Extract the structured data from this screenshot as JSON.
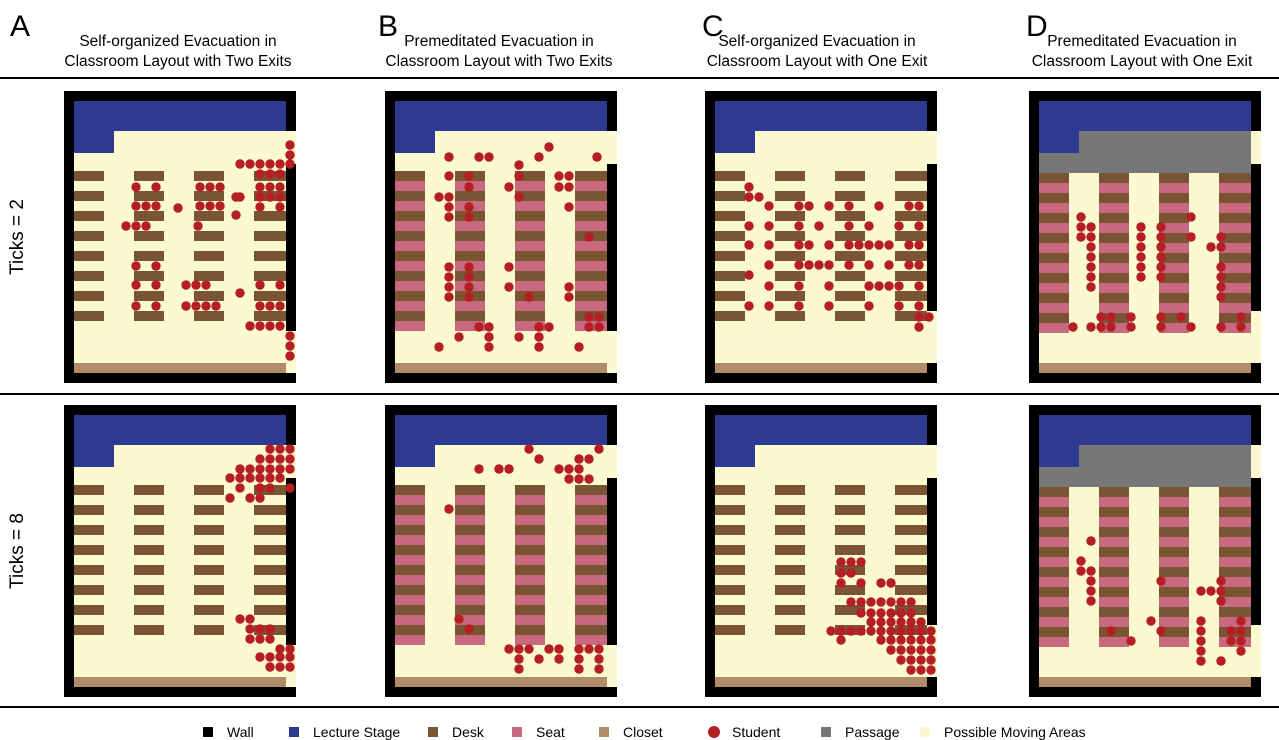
{
  "columns": [
    {
      "letter": "A",
      "title_line1": "Self-organized Evacuation in",
      "title_line2": "Classroom Layout with Two Exits"
    },
    {
      "letter": "B",
      "title_line1": "Premeditated Evacuation in",
      "title_line2": "Classroom Layout with Two Exits"
    },
    {
      "letter": "C",
      "title_line1": "Self-organized Evacuation in",
      "title_line2": "Classroom Layout with One Exit"
    },
    {
      "letter": "D",
      "title_line1": "Premeditated Evacuation in",
      "title_line2": "Classroom Layout with One Exit"
    }
  ],
  "rows": [
    {
      "label": "Ticks = 2"
    },
    {
      "label": "Ticks = 8"
    }
  ],
  "legend": [
    {
      "label": "Wall",
      "color": "#000000",
      "shape": "square"
    },
    {
      "label": "Lecture Stage",
      "color": "#2e3a8f",
      "shape": "square"
    },
    {
      "label": "Desk",
      "color": "#7a5533",
      "shape": "square"
    },
    {
      "label": "Seat",
      "color": "#c8697f",
      "shape": "square"
    },
    {
      "label": "Closet",
      "color": "#b08d68",
      "shape": "square"
    },
    {
      "label": "Student",
      "color": "#b51f24",
      "shape": "circle"
    },
    {
      "label": "Passage",
      "color": "#777777",
      "shape": "square"
    },
    {
      "label": "Possible Moving Areas",
      "color": "#fbf9cf",
      "shape": "square"
    }
  ],
  "panel_configs": {
    "A": {
      "seats": false,
      "passage": false,
      "exits": 2
    },
    "B": {
      "seats": true,
      "passage": false,
      "exits": 2
    },
    "C": {
      "seats": false,
      "passage": false,
      "exits": 1
    },
    "D": {
      "seats": true,
      "passage": true,
      "exits": 1
    }
  }
}
